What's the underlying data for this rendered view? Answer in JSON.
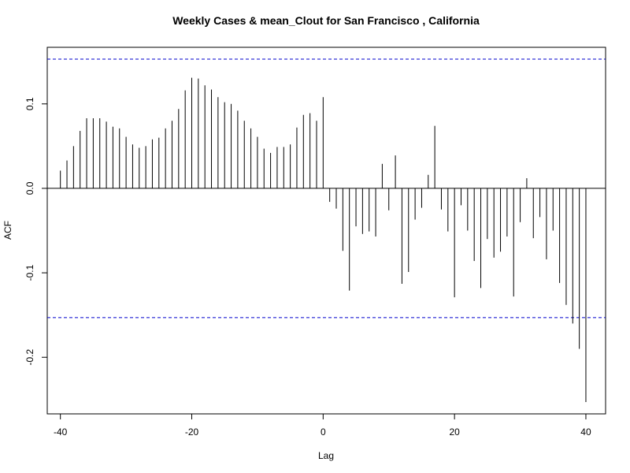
{
  "chart_data": {
    "type": "bar",
    "title": "Weekly Cases & mean_Clout for San Francisco , California",
    "xlabel": "Lag",
    "ylabel": "ACF",
    "xlim": [
      -42,
      43
    ],
    "ylim": [
      -0.267,
      0.167
    ],
    "x_ticks": [
      -40,
      -20,
      0,
      20,
      40
    ],
    "x_tick_labels": [
      "-40",
      "-20",
      "0",
      "20",
      "40"
    ],
    "y_ticks": [
      -0.2,
      -0.1,
      0.0,
      0.1
    ],
    "y_tick_labels": [
      "-0.2",
      "-0.1",
      "0.0",
      "0.1"
    ],
    "confidence_limits": [
      0.153,
      -0.153
    ],
    "confidence_color": "#0000cc",
    "bar_color": "#000000",
    "grid": false,
    "x": [
      -40,
      -39,
      -38,
      -37,
      -36,
      -35,
      -34,
      -33,
      -32,
      -31,
      -30,
      -29,
      -28,
      -27,
      -26,
      -25,
      -24,
      -23,
      -22,
      -21,
      -20,
      -19,
      -18,
      -17,
      -16,
      -15,
      -14,
      -13,
      -12,
      -11,
      -10,
      -9,
      -8,
      -7,
      -6,
      -5,
      -4,
      -3,
      -2,
      -1,
      0,
      1,
      2,
      3,
      4,
      5,
      6,
      7,
      8,
      9,
      10,
      11,
      12,
      13,
      14,
      15,
      16,
      17,
      18,
      19,
      20,
      21,
      22,
      23,
      24,
      25,
      26,
      27,
      28,
      29,
      30,
      31,
      32,
      33,
      34,
      35,
      36,
      37,
      38,
      39,
      40
    ],
    "values": [
      0.021,
      0.033,
      0.05,
      0.068,
      0.083,
      0.083,
      0.083,
      0.079,
      0.073,
      0.071,
      0.061,
      0.052,
      0.048,
      0.05,
      0.058,
      0.06,
      0.071,
      0.08,
      0.094,
      0.116,
      0.131,
      0.13,
      0.122,
      0.117,
      0.108,
      0.102,
      0.1,
      0.092,
      0.08,
      0.071,
      0.061,
      0.047,
      0.042,
      0.049,
      0.049,
      0.052,
      0.072,
      0.087,
      0.089,
      0.08,
      0.108,
      -0.016,
      -0.024,
      -0.074,
      -0.121,
      -0.045,
      -0.054,
      -0.051,
      -0.057,
      0.029,
      -0.026,
      0.039,
      -0.113,
      -0.099,
      -0.037,
      -0.023,
      0.016,
      0.074,
      -0.025,
      -0.051,
      -0.129,
      -0.02,
      -0.05,
      -0.086,
      -0.118,
      -0.06,
      -0.082,
      -0.075,
      -0.057,
      -0.128,
      -0.04,
      0.012,
      -0.059,
      -0.034,
      -0.084,
      -0.05,
      -0.112,
      -0.138,
      -0.16,
      -0.19,
      -0.253
    ]
  }
}
